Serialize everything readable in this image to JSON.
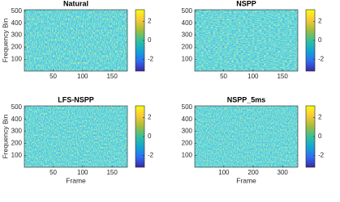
{
  "chart_data": [
    {
      "type": "heatmap",
      "title": "Natural",
      "ylabel": "Frequency Bin",
      "xlim": [
        1,
        176
      ],
      "xticks": [
        50,
        100,
        150
      ],
      "ylim": [
        1,
        513
      ],
      "yticks": [
        100,
        200,
        300,
        400,
        500
      ],
      "clim": [
        -3.25,
        3.25
      ],
      "cticks": [
        -2,
        0,
        2
      ],
      "colormap": "parula"
    },
    {
      "type": "heatmap",
      "title": "NSPP",
      "xlim": [
        1,
        176
      ],
      "xticks": [
        50,
        100,
        150
      ],
      "ylim": [
        1,
        513
      ],
      "yticks": [
        100,
        200,
        300,
        400,
        500
      ],
      "clim": [
        -3.25,
        3.25
      ],
      "cticks": [
        -2,
        0,
        2
      ],
      "colormap": "parula"
    },
    {
      "type": "heatmap",
      "title": "LFS-NSPP",
      "xlabel": "Frame",
      "ylabel": "Frequency Bin",
      "xlim": [
        1,
        176
      ],
      "xticks": [
        50,
        100,
        150
      ],
      "ylim": [
        1,
        513
      ],
      "yticks": [
        100,
        200,
        300,
        400,
        500
      ],
      "clim": [
        -3.25,
        3.25
      ],
      "cticks": [
        -2,
        0,
        2
      ],
      "colormap": "parula"
    },
    {
      "type": "heatmap",
      "title": "NSPP_5ms",
      "xlabel": "Frame",
      "xlim": [
        1,
        352
      ],
      "xticks": [
        100,
        200,
        300
      ],
      "ylim": [
        1,
        513
      ],
      "yticks": [
        100,
        200,
        300,
        400,
        500
      ],
      "clim": [
        -3.25,
        3.25
      ],
      "cticks": [
        -2,
        0,
        2
      ],
      "colormap": "parula"
    }
  ]
}
